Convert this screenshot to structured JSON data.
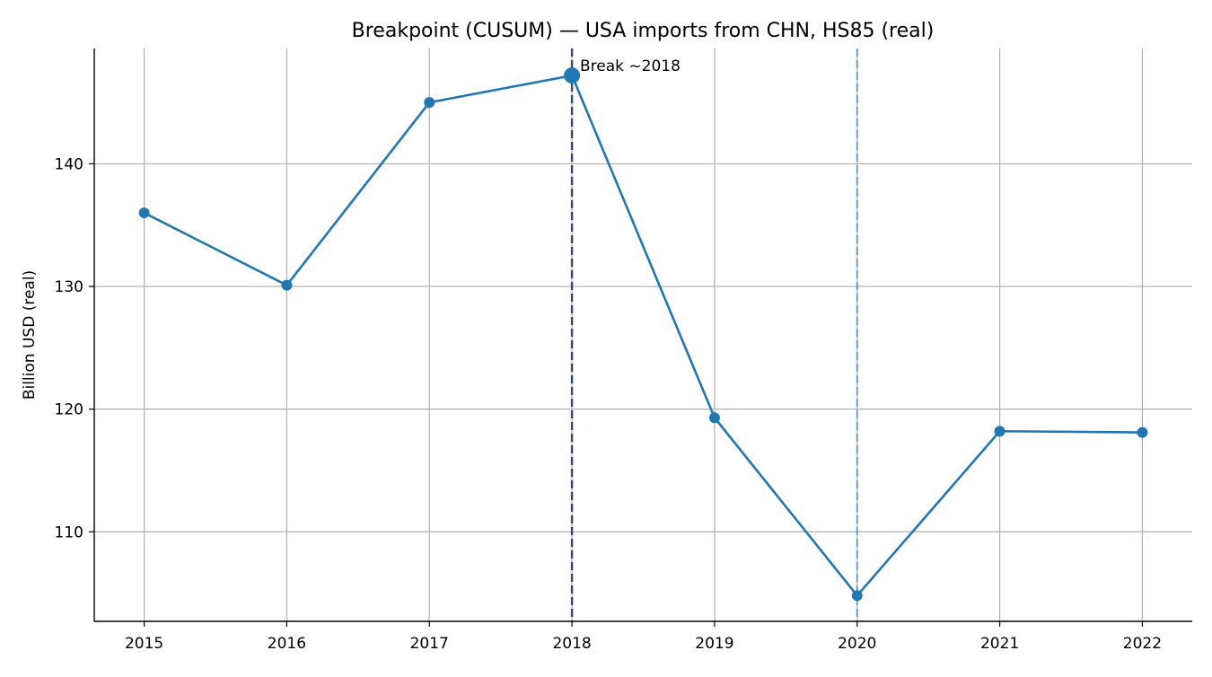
{
  "chart_data": {
    "type": "line",
    "title": "Breakpoint (CUSUM) — USA imports from CHN, HS85 (real)",
    "xlabel": "",
    "ylabel": "Billion USD (real)",
    "x": [
      2015,
      2016,
      2017,
      2018,
      2019,
      2020,
      2021,
      2022
    ],
    "series": [
      {
        "values": [
          136.0,
          130.1,
          145.0,
          147.2,
          119.3,
          104.8,
          118.2,
          118.1
        ],
        "color": "#1f77b4"
      }
    ],
    "xticks": [
      "2015",
      "2016",
      "2017",
      "2018",
      "2019",
      "2020",
      "2021",
      "2022"
    ],
    "yticks": [
      "110",
      "120",
      "130",
      "140"
    ],
    "ylim": [
      102.7,
      149.4
    ],
    "xlim": [
      2014.65,
      2022.35
    ],
    "grid": true,
    "legend": "none",
    "break": {
      "year": 2018,
      "value": 147.2,
      "label": "Break ~2018",
      "color": "#2f4b6e"
    },
    "secondary_marker": {
      "year": 2020,
      "color": "#1f77b4"
    }
  }
}
